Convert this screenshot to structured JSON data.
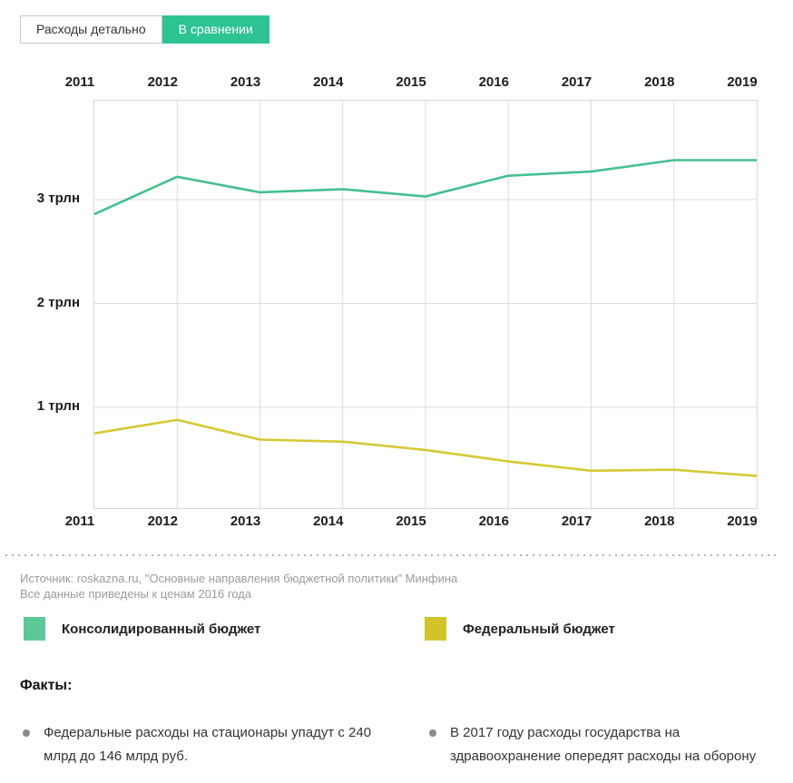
{
  "tabs": [
    {
      "label": "Расходы детально",
      "active": false
    },
    {
      "label": "В сравнении",
      "active": true
    }
  ],
  "chart_data": {
    "type": "line",
    "x": [
      2011,
      2012,
      2013,
      2014,
      2015,
      2016,
      2017,
      2018,
      2019
    ],
    "series": [
      {
        "name": "Консолидированный бюджет",
        "color": "#45c08e",
        "values": [
          2.86,
          3.22,
          3.07,
          3.1,
          3.03,
          3.23,
          3.27,
          3.38,
          3.38
        ]
      },
      {
        "name": "Федеральный бюджет",
        "color": "#d4c935",
        "values": [
          0.75,
          0.88,
          0.69,
          0.67,
          0.59,
          0.48,
          0.39,
          0.4,
          0.34
        ]
      }
    ],
    "y_ticks": [
      {
        "value": 3,
        "label": "3 трлн"
      },
      {
        "value": 2,
        "label": "2 трлн"
      },
      {
        "value": 1,
        "label": "1 трлн"
      }
    ],
    "ylim": [
      0,
      3.92
    ],
    "grid": true,
    "legend_position": "bottom",
    "x_axis_labels": "top and bottom"
  },
  "source": {
    "line1": "Источник: roskazna.ru, \"Основные направления бюджетной политики\" Минфина",
    "line2": "Все данные приведены к ценам 2016 года"
  },
  "legend": [
    {
      "label": "Консолидированный бюджет",
      "color": "#5dc897"
    },
    {
      "label": "Федеральный бюджет",
      "color": "#d3c32b"
    }
  ],
  "facts": {
    "heading": "Факты:",
    "items": [
      "Федеральные расходы на стационары упадут с 240 млрд до 146 млрд руб.",
      "В 2017 году расходы государства на здравоохранение опередят расходы на оборону"
    ]
  }
}
